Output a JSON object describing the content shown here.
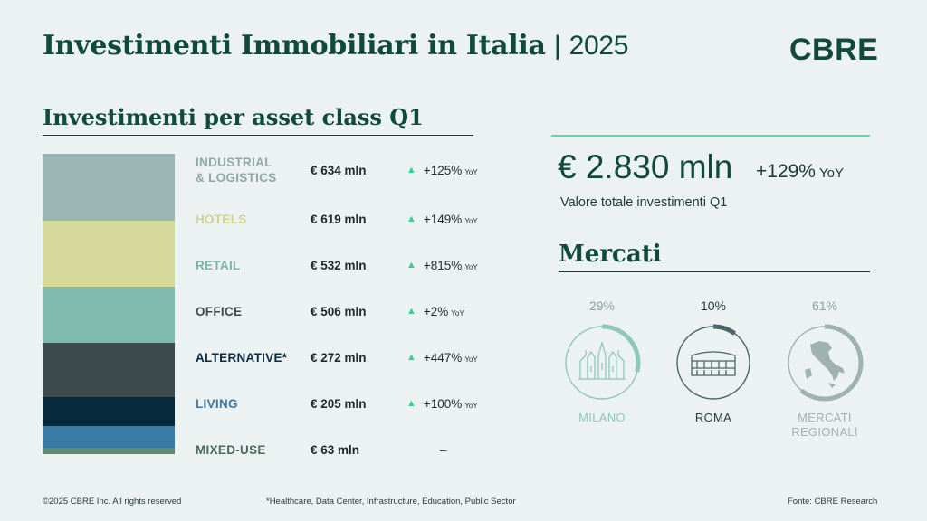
{
  "header": {
    "title": "Investimenti Immobiliari in Italia",
    "separator": "|",
    "year": "2025",
    "logo": "CBRE"
  },
  "section1": {
    "title": "Investimenti per asset class Q1"
  },
  "chart_data": {
    "type": "bar",
    "title": "Investimenti per asset class Q1",
    "categories": [
      "INDUSTRIAL & LOGISTICS",
      "HOTELS",
      "RETAIL",
      "OFFICE",
      "ALTERNATIVE*",
      "LIVING",
      "MIXED-USE"
    ],
    "values": [
      634,
      619,
      532,
      506,
      272,
      205,
      63
    ],
    "unit": "€ mln",
    "yoy_change": [
      "+125%",
      "+149%",
      "+815%",
      "+2%",
      "+447%",
      "+100%",
      "–"
    ],
    "stacked": true
  },
  "rows": [
    {
      "name_line1": "INDUSTRIAL",
      "name_line2": "& LOGISTICS",
      "value": "€ 634 mln",
      "change": "+125%",
      "yoy": "YoY",
      "text_color": "#8fa8a6",
      "bar_color": "#9ab6b4"
    },
    {
      "name_line1": "HOTELS",
      "name_line2": "",
      "value": "€ 619 mln",
      "change": "+149%",
      "yoy": "YoY",
      "text_color": "#d2d290",
      "bar_color": "#d6d99c"
    },
    {
      "name_line1": "RETAIL",
      "name_line2": "",
      "value": "€ 532 mln",
      "change": "+815%",
      "yoy": "YoY",
      "text_color": "#79b3a8",
      "bar_color": "#80bbb0"
    },
    {
      "name_line1": "OFFICE",
      "name_line2": "",
      "value": "€ 506 mln",
      "change": "+2%",
      "yoy": "YoY",
      "text_color": "#3b4a4b",
      "bar_color": "#3e4b4c"
    },
    {
      "name_line1": "ALTERNATIVE*",
      "name_line2": "",
      "value": "€ 272 mln",
      "change": "+447%",
      "yoy": "YoY",
      "text_color": "#0b2a44",
      "bar_color": "#062a3c"
    },
    {
      "name_line1": "LIVING",
      "name_line2": "",
      "value": "€ 205 mln",
      "change": "+100%",
      "yoy": "YoY",
      "text_color": "#3a78a5",
      "bar_color": "#3a7aa6"
    },
    {
      "name_line1": "MIXED-USE",
      "name_line2": "",
      "value": "€ 63 mln",
      "change": "–",
      "yoy": "",
      "text_color": "#4a6a5c",
      "bar_color": "#5f8a74"
    }
  ],
  "total": {
    "value": "€ 2.830 mln",
    "change": "+129%",
    "yoy": "YoY",
    "caption": "Valore totale investimenti Q1"
  },
  "markets": {
    "title": "Mercati",
    "items": [
      {
        "name_line1": "MILANO",
        "name_line2": "",
        "pct": "29%",
        "share": 0.29,
        "color": "#8fc8b8",
        "icon": "milan-cathedral-icon"
      },
      {
        "name_line1": "ROMA",
        "name_line2": "",
        "pct": "10%",
        "share": 0.1,
        "color": "#4a6668",
        "icon": "colosseum-icon"
      },
      {
        "name_line1": "MERCATI",
        "name_line2": "REGIONALI",
        "pct": "61%",
        "share": 0.61,
        "color": "#9fb2b0",
        "icon": "italy-map-icon"
      }
    ]
  },
  "footer": {
    "copyright": "©2025 CBRE Inc. All rights reserved",
    "note": "*Healthcare, Data Center, Infrastructure, Education, Public Sector",
    "source": "Fonte: CBRE Research"
  }
}
